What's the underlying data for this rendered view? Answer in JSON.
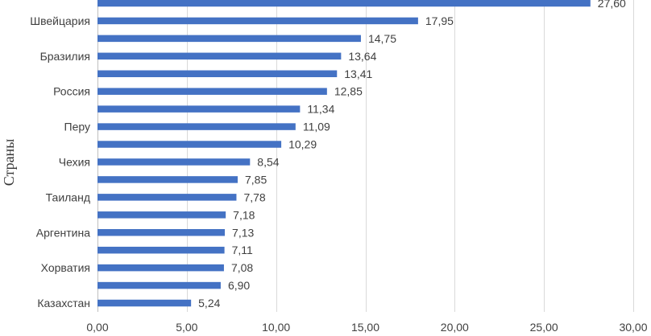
{
  "chart_data": {
    "type": "bar",
    "orientation": "horizontal",
    "title": "",
    "xlabel": "",
    "ylabel": "Страны",
    "xlim": [
      0,
      30
    ],
    "x_ticks": [
      "0,00",
      "5,00",
      "10,00",
      "15,00",
      "20,00",
      "25,00",
      "30,00"
    ],
    "x_tick_values": [
      0,
      5,
      10,
      15,
      20,
      25,
      30
    ],
    "grid": true,
    "bar_color": "#4472c4",
    "categories": [
      "",
      "Швейцария",
      "",
      "Бразилия",
      "",
      "Россия",
      "",
      "Перу",
      "",
      "Чехия",
      "",
      "Таиланд",
      "",
      "Аргентина",
      "",
      "Хорватия",
      "",
      "Казахстан"
    ],
    "values": [
      27.6,
      17.95,
      14.75,
      13.64,
      13.41,
      12.85,
      11.34,
      11.09,
      10.29,
      8.54,
      7.85,
      7.78,
      7.18,
      7.13,
      7.11,
      7.08,
      6.9,
      5.24
    ],
    "value_labels": [
      "27,60",
      "17,95",
      "14,75",
      "13,64",
      "13,41",
      "12,85",
      "11,34",
      "11,09",
      "10,29",
      "8,54",
      "7,85",
      "7,78",
      "7,18",
      "7,13",
      "7,11",
      "7,08",
      "6,90",
      "5,24"
    ]
  }
}
